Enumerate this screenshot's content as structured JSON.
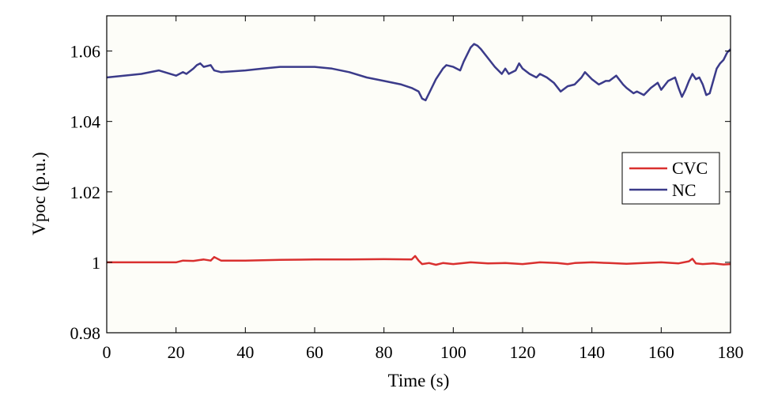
{
  "chart_data": {
    "type": "line",
    "title": "",
    "xlabel": "Time (s)",
    "ylabel": "Vpoc (p.u.)",
    "xlim": [
      0,
      180
    ],
    "ylim": [
      0.98,
      1.07
    ],
    "x_ticks": [
      0,
      20,
      40,
      60,
      80,
      100,
      120,
      140,
      160,
      180
    ],
    "x_tick_labels": [
      "0",
      "20",
      "40",
      "60",
      "80",
      "100",
      "120",
      "140",
      "160",
      "180"
    ],
    "y_ticks": [
      0.98,
      1.0,
      1.02,
      1.04,
      1.06
    ],
    "y_tick_labels": [
      "0.98",
      "1",
      "1.02",
      "1.04",
      "1.06"
    ],
    "grid": false,
    "legend_position": "right",
    "series": [
      {
        "name": "CVC",
        "color": "#d9302f",
        "x": [
          0,
          10,
          20,
          22,
          25,
          28,
          30,
          31,
          33,
          40,
          50,
          60,
          70,
          80,
          88,
          89,
          90,
          91,
          93,
          95,
          97,
          100,
          105,
          110,
          115,
          120,
          125,
          130,
          133,
          135,
          140,
          145,
          150,
          155,
          160,
          165,
          168,
          169,
          170,
          172,
          175,
          178,
          180
        ],
        "y": [
          1.0,
          1.0,
          1.0,
          1.0005,
          1.0004,
          1.0008,
          1.0005,
          1.0015,
          1.0005,
          1.0005,
          1.0007,
          1.0008,
          1.0008,
          1.0009,
          1.0008,
          1.0018,
          1.0005,
          0.9995,
          0.9998,
          0.9993,
          0.9998,
          0.9995,
          1.0,
          0.9997,
          0.9998,
          0.9995,
          1.0,
          0.9998,
          0.9995,
          0.9998,
          1.0,
          0.9998,
          0.9996,
          0.9998,
          1.0,
          0.9997,
          1.0003,
          1.001,
          0.9997,
          0.9995,
          0.9997,
          0.9994,
          0.9995
        ]
      },
      {
        "name": "NC",
        "color": "#3b3b8a",
        "x": [
          0,
          5,
          10,
          15,
          20,
          22,
          23,
          25,
          26,
          27,
          28,
          30,
          31,
          33,
          40,
          45,
          50,
          55,
          60,
          65,
          70,
          75,
          80,
          85,
          88,
          90,
          91,
          92,
          93,
          95,
          97,
          98,
          100,
          102,
          103,
          105,
          106,
          107,
          108,
          110,
          112,
          114,
          115,
          116,
          118,
          119,
          120,
          122,
          124,
          125,
          127,
          129,
          131,
          133,
          135,
          137,
          138,
          140,
          142,
          144,
          145,
          147,
          149,
          150,
          152,
          153,
          155,
          157,
          159,
          160,
          162,
          164,
          165,
          166,
          167,
          168,
          169,
          170,
          171,
          172,
          173,
          174,
          175,
          176,
          177,
          178,
          179,
          180
        ],
        "y": [
          1.0525,
          1.053,
          1.0535,
          1.0545,
          1.053,
          1.054,
          1.0535,
          1.055,
          1.056,
          1.0565,
          1.0555,
          1.056,
          1.0545,
          1.054,
          1.0545,
          1.055,
          1.0555,
          1.0555,
          1.0555,
          1.055,
          1.054,
          1.0525,
          1.0515,
          1.0505,
          1.0495,
          1.0485,
          1.0465,
          1.046,
          1.048,
          1.052,
          1.055,
          1.056,
          1.0555,
          1.0545,
          1.057,
          1.061,
          1.062,
          1.0615,
          1.0605,
          1.058,
          1.0555,
          1.0535,
          1.055,
          1.0535,
          1.0545,
          1.0565,
          1.055,
          1.0535,
          1.0525,
          1.0535,
          1.0525,
          1.051,
          1.0485,
          1.05,
          1.0505,
          1.0525,
          1.054,
          1.052,
          1.0505,
          1.0515,
          1.0515,
          1.053,
          1.0505,
          1.0495,
          1.048,
          1.0485,
          1.0475,
          1.0495,
          1.051,
          1.049,
          1.0515,
          1.0525,
          1.0495,
          1.047,
          1.049,
          1.0515,
          1.0535,
          1.052,
          1.0525,
          1.0505,
          1.0475,
          1.048,
          1.0515,
          1.055,
          1.0565,
          1.0575,
          1.0595,
          1.0605
        ]
      }
    ]
  }
}
